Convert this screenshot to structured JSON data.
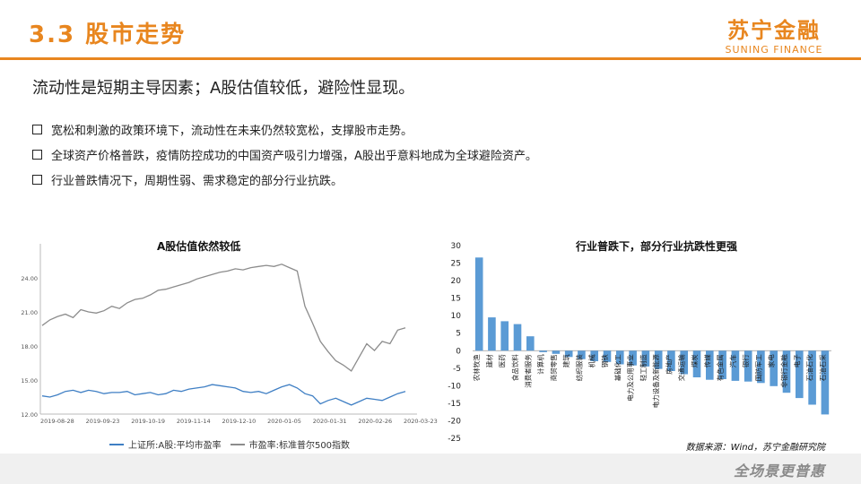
{
  "header": {
    "title": "3.3 股市走势",
    "logo_cn": "苏宁金融",
    "logo_en": "SUNING FINANCE"
  },
  "subtitle": "流动性是短期主导因素；A股估值较低，避险性显现。",
  "bullets": [
    "宽松和刺激的政策环境下，流动性在未来仍然较宽松，支撑股市走势。",
    "全球资产价格普跌，疫情防控成功的中国资产吸引力增强，A股出乎意料地成为全球避险资产。",
    "行业普跌情况下，周期性弱、需求稳定的部分行业抗跌。"
  ],
  "colors": {
    "accent": "#e8861f",
    "blue": "#3f7fc4",
    "gray": "#8c8c8c",
    "bar": "#5b9bd5"
  },
  "chart_data": [
    {
      "type": "line",
      "title": "A股估值依然较低",
      "x_ticks": [
        "2019-08-28",
        "2019-09-23",
        "2019-10-19",
        "2019-11-14",
        "2019-12-10",
        "2020-01-05",
        "2020-01-31",
        "2020-02-26",
        "2020-03-23"
      ],
      "y_ticks": [
        "12.00",
        "15.00",
        "18.00",
        "21.00",
        "24.00"
      ],
      "ylim": [
        12,
        27
      ],
      "series": [
        {
          "name": "上证所:A股:平均市盈率",
          "color": "#3f7fc4",
          "values": [
            13.6,
            13.5,
            13.7,
            14.0,
            14.1,
            13.9,
            14.1,
            14.0,
            13.8,
            13.9,
            13.9,
            14.0,
            13.7,
            13.8,
            13.9,
            13.7,
            13.8,
            14.1,
            14.0,
            14.2,
            14.3,
            14.4,
            14.6,
            14.5,
            14.4,
            14.3,
            14.0,
            13.9,
            14.0,
            13.8,
            14.1,
            14.4,
            14.6,
            14.3,
            13.8,
            13.6,
            12.9,
            13.2,
            13.4,
            13.1,
            12.8,
            13.1,
            13.4,
            13.3,
            13.2,
            13.5,
            13.8,
            14.0
          ]
        },
        {
          "name": "市盈率:标准普尔500指数",
          "color": "#8c8c8c",
          "values": [
            19.8,
            20.3,
            20.6,
            20.8,
            20.5,
            21.2,
            21.0,
            20.9,
            21.1,
            21.5,
            21.3,
            21.8,
            22.1,
            22.2,
            22.5,
            22.9,
            23.0,
            23.2,
            23.4,
            23.6,
            23.9,
            24.1,
            24.3,
            24.5,
            24.6,
            24.8,
            24.7,
            24.9,
            25.0,
            25.1,
            25.0,
            25.2,
            24.9,
            24.6,
            21.5,
            20.0,
            18.4,
            17.5,
            16.7,
            16.3,
            15.8,
            17.0,
            18.2,
            17.6,
            18.4,
            18.2,
            19.4,
            19.6
          ]
        }
      ]
    },
    {
      "type": "bar",
      "title": "行业普跌下，部分行业抗跌性更强",
      "ylim": [
        -25,
        30
      ],
      "y_ticks": [
        30,
        25,
        20,
        15,
        10,
        5,
        0,
        -5,
        -10,
        -15,
        -20,
        -25
      ],
      "categories": [
        "农林牧渔",
        "建材",
        "医药",
        "食品饮料",
        "消费者服务",
        "计算机",
        "商贸零售",
        "建筑",
        "纺织服装",
        "机械",
        "钢铁",
        "基础化工",
        "电力及公用事业",
        "轻工制造",
        "电力设备及新能源",
        "房地产",
        "交通运输",
        "煤炭",
        "传媒",
        "有色金属",
        "汽车",
        "银行",
        "国防军工",
        "家电",
        "非银行金融",
        "电子",
        "石油石化",
        "石油石采"
      ],
      "values": [
        26.6,
        9.5,
        8.4,
        7.6,
        4.1,
        -0.4,
        -0.9,
        -1.8,
        -2.4,
        -3.0,
        -3.2,
        -3.9,
        -4.2,
        -4.5,
        -5.2,
        -5.8,
        -6.7,
        -7.6,
        -8.3,
        -8.1,
        -8.6,
        -8.8,
        -9.2,
        -10.1,
        -12.0,
        -13.5,
        -15.4,
        -18.2
      ]
    }
  ],
  "source": "数据来源：Wind，苏宁金融研究院",
  "footer_slogan": "全场景更普惠"
}
